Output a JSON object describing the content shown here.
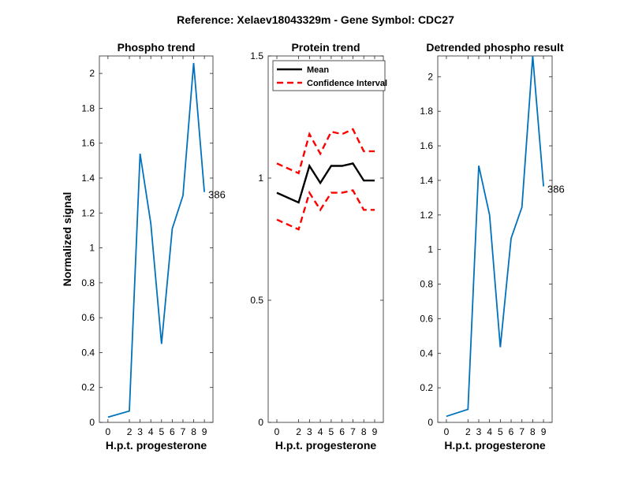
{
  "figure": {
    "suptitle": "Reference:  Xelaev18043329m - Gene Symbol:  CDC27"
  },
  "chart_data": [
    {
      "type": "line",
      "title": "Phospho trend",
      "xlabel": "H.p.t. progesterone",
      "ylabel": "Normalized signal",
      "x_ticks": [
        0,
        2,
        3,
        4,
        5,
        6,
        7,
        8,
        9
      ],
      "y_ticks": [
        0,
        0.2,
        0.4,
        0.6,
        0.8,
        1,
        1.2,
        1.4,
        1.6,
        1.8,
        2
      ],
      "y_tick_labels": [
        "0",
        "0.2",
        "0.4",
        "0.6",
        "0.8",
        "1",
        "1.2",
        "1.4",
        "1.6",
        "1.8",
        "2"
      ],
      "ylim": [
        0,
        2.1
      ],
      "series": [
        {
          "color": "#0072BD",
          "dash": "solid",
          "x": [
            0,
            2,
            3,
            4,
            5,
            6,
            7,
            8,
            9
          ],
          "values": [
            0.03,
            0.065,
            1.54,
            1.14,
            0.45,
            1.11,
            1.3,
            2.06,
            1.32
          ]
        }
      ],
      "annotation": "386"
    },
    {
      "type": "line",
      "title": "Protein trend",
      "xlabel": "H.p.t. progesterone",
      "ylabel": "",
      "x_ticks": [
        0,
        2,
        3,
        4,
        5,
        6,
        7,
        8,
        9
      ],
      "y_ticks": [
        0,
        0.5,
        1,
        1.5
      ],
      "y_tick_labels": [
        "0",
        "0.5",
        "1",
        "1.5"
      ],
      "ylim": [
        0,
        1.5
      ],
      "legend_position": "top-left",
      "series": [
        {
          "name": "Mean",
          "color": "#000000",
          "dash": "solid",
          "x": [
            0,
            2,
            3,
            4,
            5,
            6,
            7,
            8,
            9
          ],
          "values": [
            0.94,
            0.9,
            1.05,
            0.98,
            1.05,
            1.05,
            1.06,
            0.99,
            0.99
          ]
        },
        {
          "name": "Confidence Interval",
          "color": "#FF0000",
          "dash": "dashed",
          "x": [
            0,
            2,
            3,
            4,
            5,
            6,
            7,
            8,
            9
          ],
          "values": [
            1.06,
            1.02,
            1.18,
            1.1,
            1.19,
            1.18,
            1.2,
            1.11,
            1.11
          ]
        },
        {
          "color": "#FF0000",
          "dash": "dashed",
          "x": [
            0,
            2,
            3,
            4,
            5,
            6,
            7,
            8,
            9
          ],
          "values": [
            0.83,
            0.79,
            0.94,
            0.87,
            0.94,
            0.94,
            0.95,
            0.87,
            0.87
          ]
        }
      ]
    },
    {
      "type": "line",
      "title": "Detrended phospho result",
      "xlabel": "H.p.t. progesterone",
      "ylabel": "",
      "x_ticks": [
        0,
        2,
        3,
        4,
        5,
        6,
        7,
        8,
        9
      ],
      "y_ticks": [
        0,
        0.2,
        0.4,
        0.6,
        0.8,
        1,
        1.2,
        1.4,
        1.6,
        1.8,
        2
      ],
      "y_tick_labels": [
        "0",
        "0.2",
        "0.4",
        "0.6",
        "0.8",
        "1",
        "1.2",
        "1.4",
        "1.6",
        "1.8",
        "2"
      ],
      "ylim": [
        0,
        2.12
      ],
      "series": [
        {
          "color": "#0072BD",
          "dash": "solid",
          "x": [
            0,
            2,
            3,
            4,
            5,
            6,
            7,
            8,
            9
          ],
          "values": [
            0.035,
            0.075,
            1.485,
            1.2,
            0.435,
            1.065,
            1.245,
            2.12,
            1.365
          ]
        }
      ],
      "annotation": "386"
    }
  ]
}
